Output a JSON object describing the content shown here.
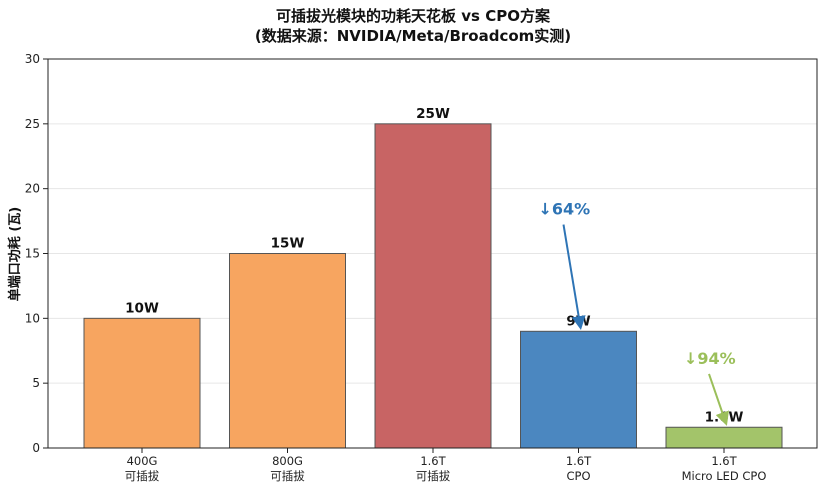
{
  "chart_data": {
    "type": "bar",
    "title": "可插拔光模块的功耗天花板 vs CPO方案",
    "subtitle": "(数据来源：NVIDIA/Meta/Broadcom实测)",
    "xlabel": "",
    "ylabel": "单端口功耗 (瓦)",
    "ylim": [
      0,
      30
    ],
    "yticks": [
      0,
      5,
      10,
      15,
      20,
      25,
      30
    ],
    "grid": true,
    "categories": [
      [
        "400G",
        "可插拔"
      ],
      [
        "800G",
        "可插拔"
      ],
      [
        "1.6T",
        "可插拔"
      ],
      [
        "1.6T",
        "CPO"
      ],
      [
        "1.6T",
        "Micro LED CPO"
      ]
    ],
    "values": [
      10,
      15,
      25,
      9,
      1.6
    ],
    "value_labels": [
      "10W",
      "15W",
      "25W",
      "9W",
      "1.6W"
    ],
    "colors": [
      "#f7a560",
      "#f7a560",
      "#c86464",
      "#4b87c0",
      "#a3c46a"
    ],
    "annotations": [
      {
        "text": "↓64%",
        "color": "#2e74b5",
        "from_bar": 2,
        "to_bar": 3
      },
      {
        "text": "↓94%",
        "color": "#9bbf5a",
        "from_bar": 3,
        "to_bar": 4
      }
    ]
  }
}
